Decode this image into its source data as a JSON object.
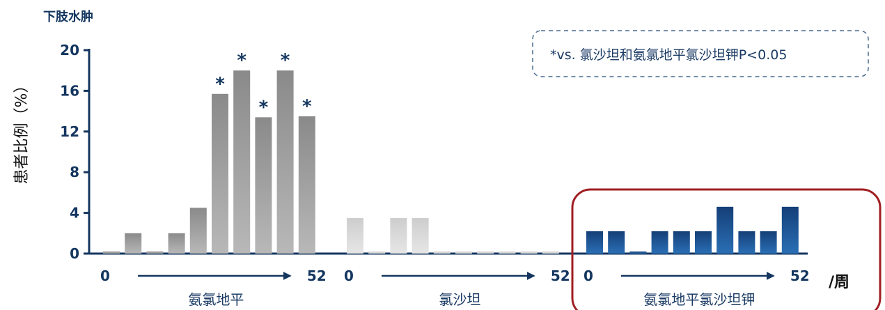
{
  "chart_data": {
    "type": "bar",
    "title": "下肢水肿",
    "ylabel": "患者比例（%）",
    "ylim": [
      0,
      20
    ],
    "yticks": [
      0,
      4,
      8,
      12,
      16,
      20
    ],
    "annotation": "*vs. 氯沙坦和氨氯地平氯沙坦钾P<0.05",
    "unit": "/周",
    "star_symbol": "*",
    "groups": [
      {
        "name": "氨氯地平",
        "start_label": "0",
        "end_label": "52",
        "color": "#9a9a9a",
        "values": [
          0.2,
          2.0,
          0.2,
          2.0,
          4.5,
          15.7,
          18.0,
          13.4,
          18.0,
          13.5
        ],
        "significant": [
          false,
          false,
          false,
          false,
          false,
          true,
          true,
          true,
          true,
          true
        ]
      },
      {
        "name": "氯沙坦",
        "start_label": "0",
        "end_label": "52",
        "color": "#d4d4d4",
        "values": [
          3.5,
          0.2,
          3.5,
          3.5,
          0.2,
          0.2,
          0.2,
          0.2,
          0.2,
          0.2
        ],
        "significant": [
          false,
          false,
          false,
          false,
          false,
          false,
          false,
          false,
          false,
          false
        ]
      },
      {
        "name": "氨氯地平氯沙坦钾",
        "start_label": "0",
        "end_label": "52",
        "color": "#1c4f8f",
        "values": [
          2.2,
          2.2,
          0.2,
          2.2,
          2.2,
          2.2,
          4.6,
          2.2,
          2.2,
          4.6
        ],
        "significant": [
          false,
          false,
          false,
          false,
          false,
          false,
          false,
          false,
          false,
          false
        ]
      }
    ],
    "highlight_group": 2,
    "colors": {
      "axis": "#14365f",
      "highlight_border": "#a01e22"
    }
  }
}
